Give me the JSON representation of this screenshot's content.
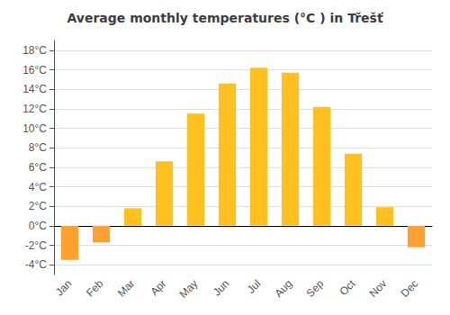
{
  "chart_data": {
    "type": "bar",
    "title": "Average monthly temperatures (°C ) in Třešť",
    "categories": [
      "Jan",
      "Feb",
      "Mar",
      "Apr",
      "May",
      "Jun",
      "Jul",
      "Aug",
      "Sep",
      "Oct",
      "Nov",
      "Dec"
    ],
    "values": [
      -3.5,
      -1.7,
      1.8,
      6.6,
      11.5,
      14.6,
      16.2,
      15.7,
      12.2,
      7.4,
      1.9,
      -2.2
    ],
    "colors": [
      "#FFA030",
      "#FFA030",
      "#FFC020",
      "#FFC020",
      "#FFC020",
      "#FFC020",
      "#FFC020",
      "#FFC020",
      "#FFC020",
      "#FFC020",
      "#FFC020",
      "#FFA030"
    ],
    "ylim": [
      -5,
      19
    ],
    "yticks": [
      {
        "value": -4,
        "label": "-4°C"
      },
      {
        "value": -2,
        "label": "-2°C"
      },
      {
        "value": 0,
        "label": "0°C"
      },
      {
        "value": 2,
        "label": "2°C"
      },
      {
        "value": 4,
        "label": "4°C"
      },
      {
        "value": 6,
        "label": "6°C"
      },
      {
        "value": 8,
        "label": "8°C"
      },
      {
        "value": 10,
        "label": "10°C"
      },
      {
        "value": 12,
        "label": "12°C"
      },
      {
        "value": 14,
        "label": "14°C"
      },
      {
        "value": 16,
        "label": "16°C"
      },
      {
        "value": 18,
        "label": "18°C"
      }
    ],
    "grid": true
  }
}
